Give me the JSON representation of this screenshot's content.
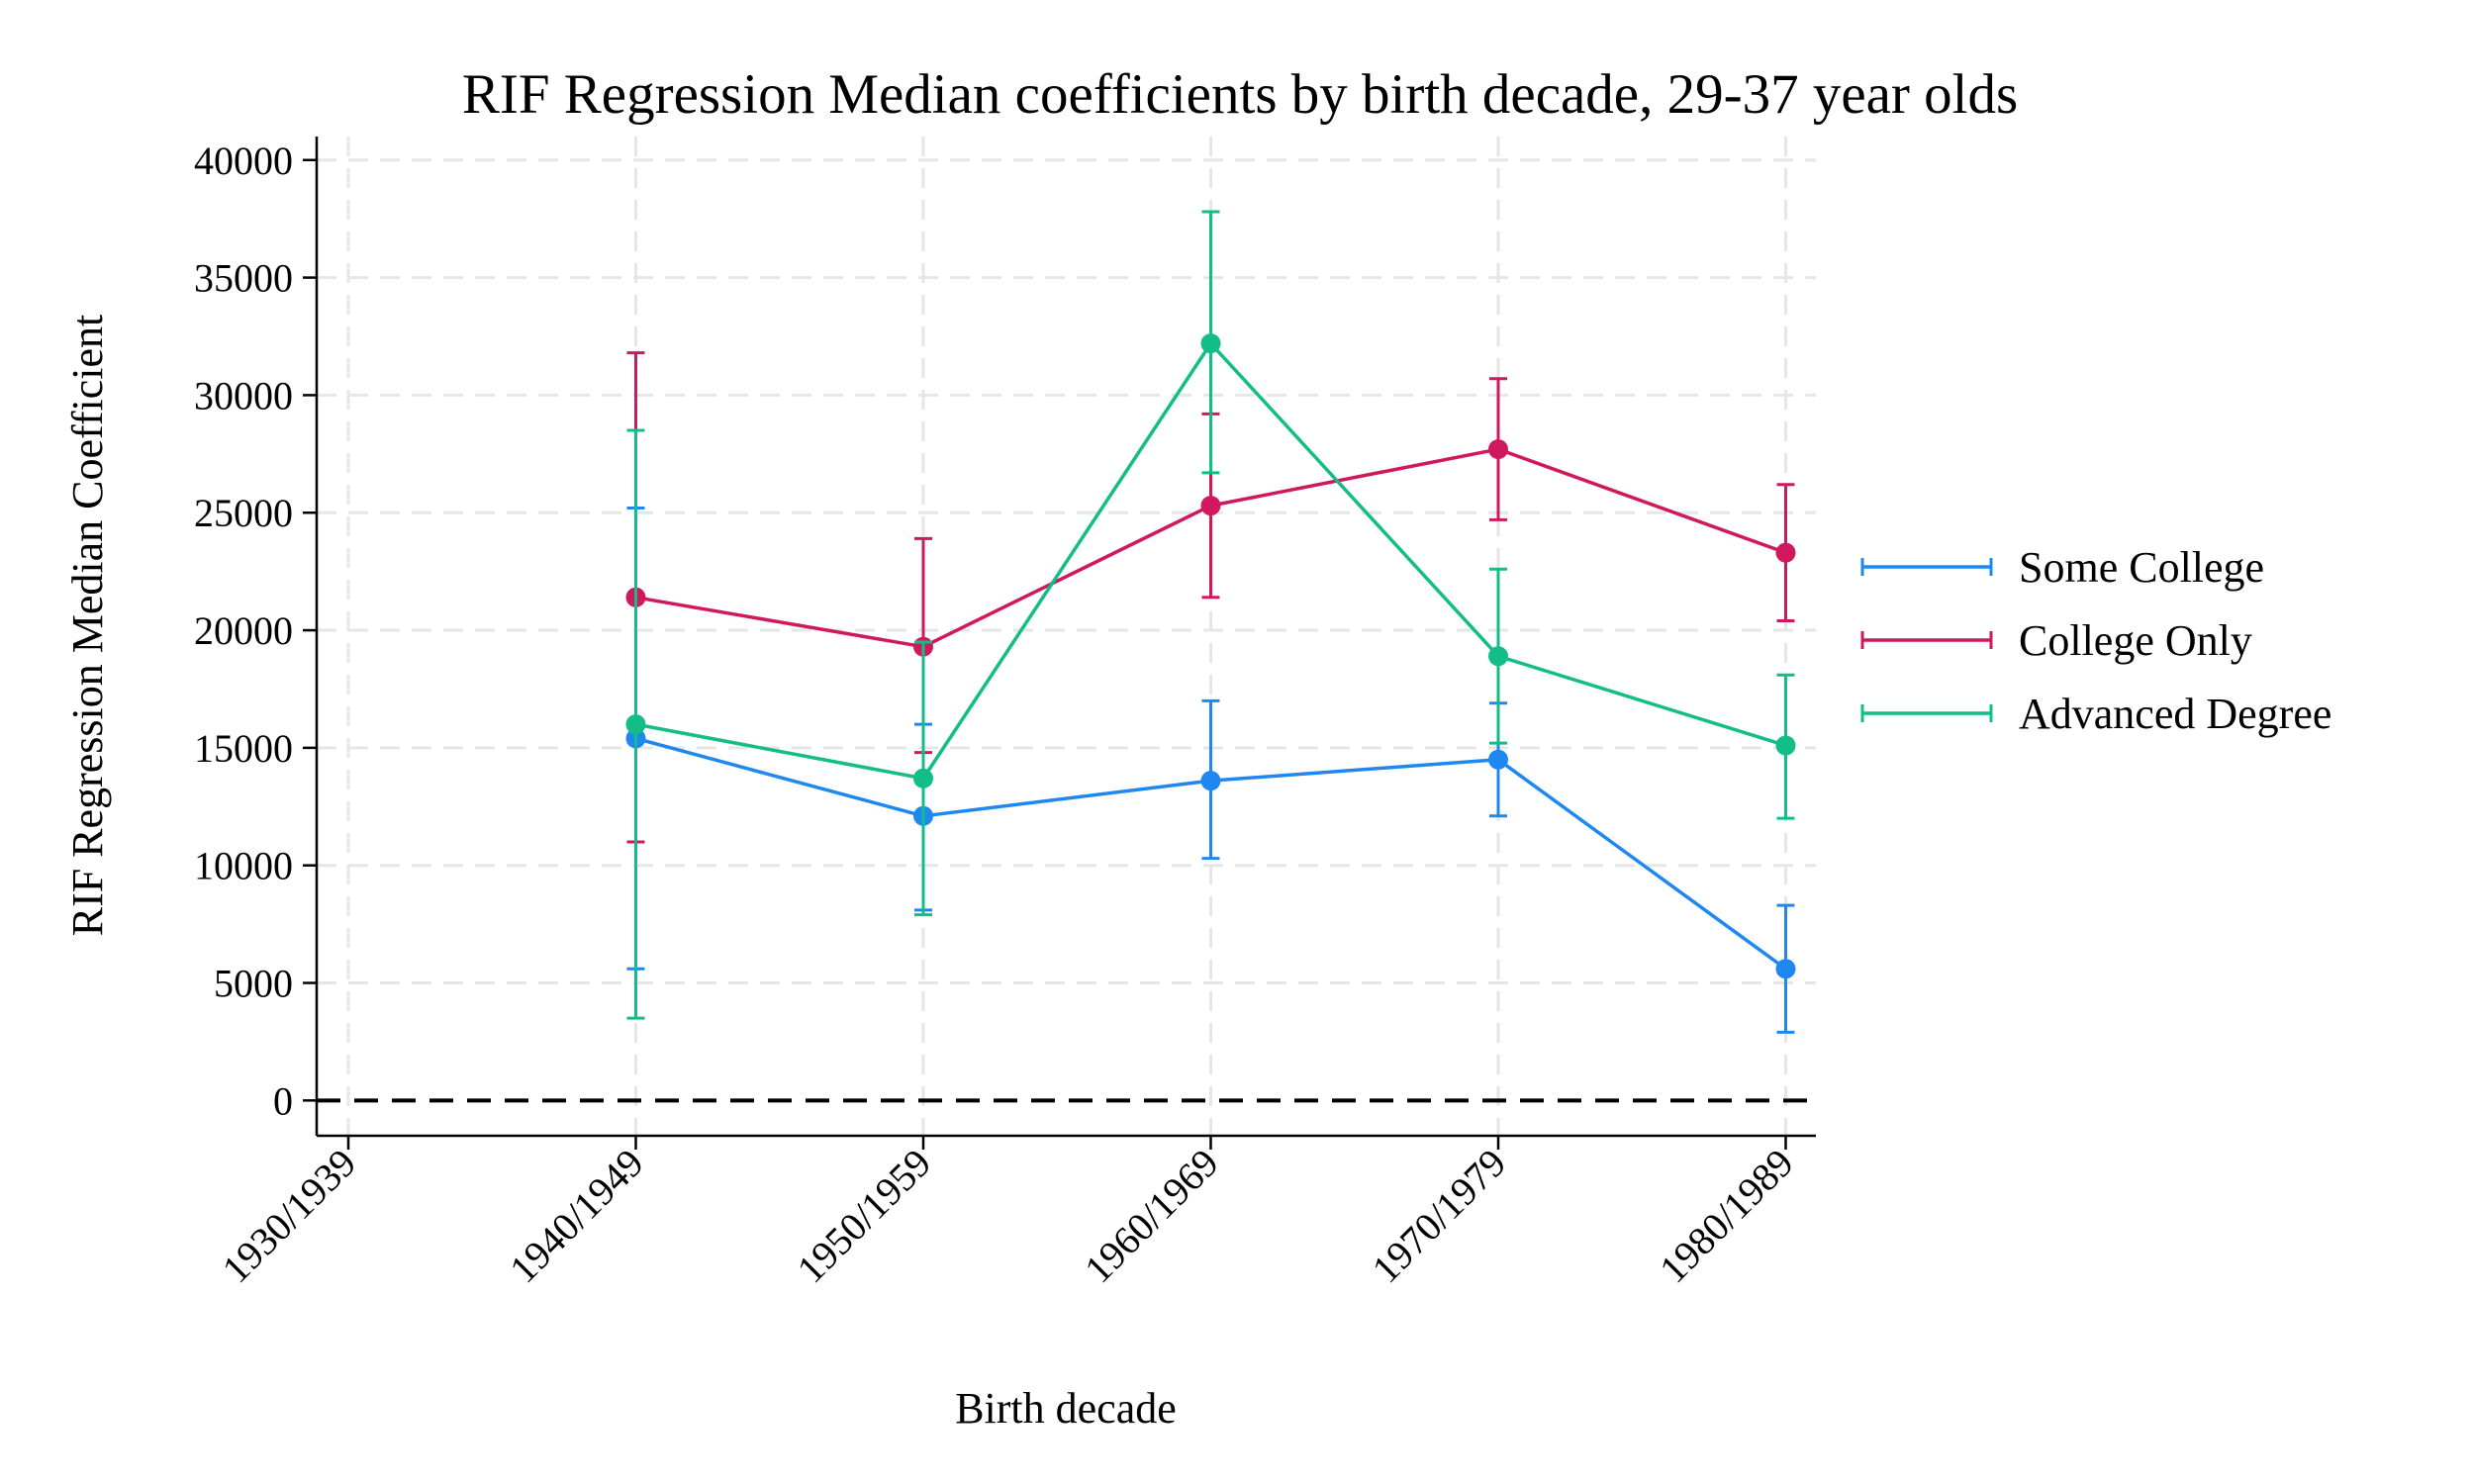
{
  "chart_data": {
    "type": "line",
    "title": "RIF Regression Median coefficients by birth decade, 29-37 year olds",
    "xlabel": "Birth decade",
    "ylabel": "RIF Regression Median Coefficient",
    "categories": [
      "1930/1939",
      "1940/1949",
      "1950/1959",
      "1960/1969",
      "1970/1979",
      "1980/1989"
    ],
    "ylim": [
      -1500,
      41000
    ],
    "yticks": [
      0,
      5000,
      10000,
      15000,
      20000,
      25000,
      30000,
      35000,
      40000
    ],
    "grid": true,
    "reference_line": 0,
    "legend_position": "right",
    "series": [
      {
        "name": "Some College",
        "color": "#1f88f0",
        "points": [
          {
            "x": "1940/1949",
            "y": 15400,
            "lo": 5600,
            "hi": 25200
          },
          {
            "x": "1950/1959",
            "y": 12100,
            "lo": 8100,
            "hi": 16000
          },
          {
            "x": "1960/1969",
            "y": 13600,
            "lo": 10300,
            "hi": 17000
          },
          {
            "x": "1970/1979",
            "y": 14500,
            "lo": 12100,
            "hi": 16900
          },
          {
            "x": "1980/1989",
            "y": 5600,
            "lo": 2900,
            "hi": 8300
          }
        ]
      },
      {
        "name": "College Only",
        "color": "#d0185e",
        "points": [
          {
            "x": "1940/1949",
            "y": 21400,
            "lo": 11000,
            "hi": 31800
          },
          {
            "x": "1950/1959",
            "y": 19300,
            "lo": 14800,
            "hi": 23900
          },
          {
            "x": "1960/1969",
            "y": 25300,
            "lo": 21400,
            "hi": 29200
          },
          {
            "x": "1970/1979",
            "y": 27700,
            "lo": 24700,
            "hi": 30700
          },
          {
            "x": "1980/1989",
            "y": 23300,
            "lo": 20400,
            "hi": 26200
          }
        ]
      },
      {
        "name": "Advanced Degree",
        "color": "#12bd86",
        "points": [
          {
            "x": "1940/1949",
            "y": 16000,
            "lo": 3500,
            "hi": 28500
          },
          {
            "x": "1950/1959",
            "y": 13700,
            "lo": 7900,
            "hi": 19500
          },
          {
            "x": "1960/1969",
            "y": 32200,
            "lo": 26700,
            "hi": 37800
          },
          {
            "x": "1970/1979",
            "y": 18900,
            "lo": 15200,
            "hi": 22600
          },
          {
            "x": "1980/1989",
            "y": 15100,
            "lo": 12000,
            "hi": 18100
          }
        ]
      }
    ]
  }
}
